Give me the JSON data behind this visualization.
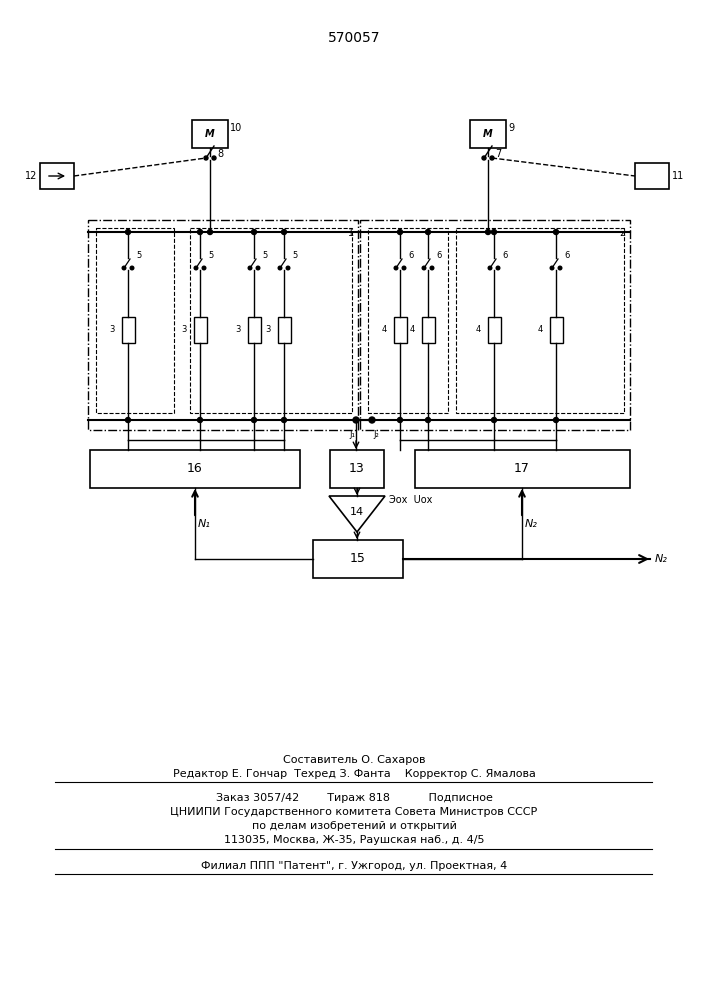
{
  "title": "570057",
  "bg_color": "#ffffff",
  "footer_lines": [
    "Составитель О. Сахаров",
    "Редактор Е. Гончар  Техред З. Фанта    Корректор С. Ямалова",
    "Заказ 3057/42        Тираж 818           Подписное",
    "ЦНИИПИ Государственного комитета Совета Министров СССР",
    "по делам изобретений и открытий",
    "113035, Москва, Ж-35, Раушская наб., д. 4/5",
    "Филиал ППП \"Патент\", г. Ужгород, ул. Проектная, 4"
  ]
}
